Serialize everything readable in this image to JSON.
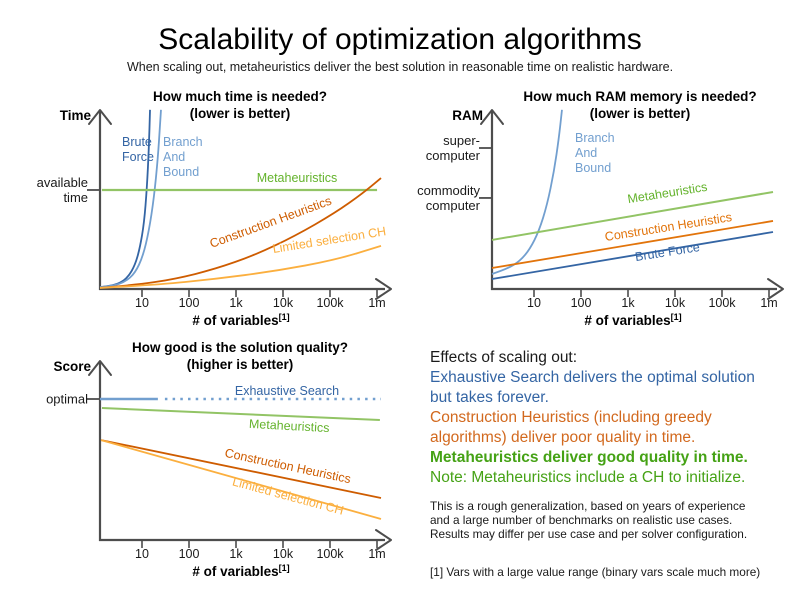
{
  "page": {
    "title": "Scalability of optimization algorithms",
    "subtitle": "When scaling out, metaheuristics deliver the best solution in reasonable time on realistic hardware."
  },
  "chart_data": [
    {
      "id": "time",
      "type": "line",
      "title_lines": [
        "How much time is needed?",
        "(lower is better)"
      ],
      "y_axis_label": "Time",
      "x_axis_label": "# of variables",
      "x_axis_footnote_marker": "[1]",
      "x_scale": "log",
      "x_tick_labels": [
        "10",
        "100",
        "1k",
        "10k",
        "100k",
        "1m"
      ],
      "y_ticks": [
        {
          "lines": [
            "available",
            "time"
          ],
          "fy": 0.547
        }
      ],
      "legend_position": "inline-labels",
      "grid": false,
      "series": [
        {
          "name": "Brute Force",
          "color": "#3465A4",
          "width": 1.8,
          "segments": [
            {
              "points": [
                [
                  0,
                  0.01
                ],
                [
                  0.036,
                  0.017
                ],
                [
                  0.071,
                  0.033
                ],
                [
                  0.1,
                  0.066
                ],
                [
                  0.125,
                  0.133
                ],
                [
                  0.142,
                  0.227
                ],
                [
                  0.157,
                  0.365
                ],
                [
                  0.167,
                  0.56
                ],
                [
                  0.174,
                  0.78
                ],
                [
                  0.178,
                  0.99
                ]
              ]
            }
          ],
          "label": {
            "lines": [
              "Brute",
              "Force"
            ],
            "x": 97,
            "y": 61,
            "anchor": "start"
          }
        },
        {
          "name": "Branch And Bound",
          "color": "#729FCF",
          "width": 1.8,
          "segments": [
            {
              "points": [
                [
                  0,
                  0.01
                ],
                [
                  0.046,
                  0.017
                ],
                [
                  0.089,
                  0.039
                ],
                [
                  0.125,
                  0.088
                ],
                [
                  0.153,
                  0.182
                ],
                [
                  0.174,
                  0.32
                ],
                [
                  0.192,
                  0.503
                ],
                [
                  0.206,
                  0.724
                ],
                [
                  0.214,
                  0.917
                ],
                [
                  0.217,
                  0.99
                ]
              ]
            }
          ],
          "label": {
            "lines": [
              "Branch",
              "And",
              "Bound"
            ],
            "x": 138,
            "y": 61,
            "anchor": "start"
          }
        },
        {
          "name": "Metaheuristics",
          "color": "#92C465",
          "width": 2.2,
          "segments": [
            {
              "points": [
                [
                  0.007,
                  0.547
                ],
                [
                  0.986,
                  0.547
                ]
              ]
            }
          ],
          "label": {
            "lines": [
              "Metaheuristics"
            ],
            "x": 272,
            "y": 97,
            "anchor": "middle",
            "color": "#64B32C"
          }
        },
        {
          "name": "Construction Heuristics",
          "color": "#CE5C00",
          "width": 1.8,
          "segments": [
            {
              "points": [
                [
                  0,
                  0.006
                ],
                [
                  0.125,
                  0.022
                ],
                [
                  0.267,
                  0.055
                ],
                [
                  0.409,
                  0.11
                ],
                [
                  0.552,
                  0.188
                ],
                [
                  0.694,
                  0.293
                ],
                [
                  0.836,
                  0.42
                ],
                [
                  0.936,
                  0.53
                ],
                [
                  1,
                  0.613
                ]
              ]
            }
          ],
          "label": {
            "lines": [
              "Construction Heuristics"
            ],
            "x": 247,
            "y": 141,
            "anchor": "middle",
            "rotate": -20
          }
        },
        {
          "name": "Limited selection CH",
          "color": "#FBAF3F",
          "width": 1.8,
          "segments": [
            {
              "points": [
                [
                  0,
                  0.006
                ],
                [
                  0.196,
                  0.022
                ],
                [
                  0.409,
                  0.055
                ],
                [
                  0.623,
                  0.099
                ],
                [
                  0.836,
                  0.16
                ],
                [
                  1,
                  0.238
                ]
              ]
            }
          ],
          "label": {
            "lines": [
              "Limited selection CH"
            ],
            "x": 305,
            "y": 159,
            "anchor": "middle",
            "rotate": -9
          }
        }
      ]
    },
    {
      "id": "ram",
      "type": "line",
      "title_lines": [
        "How much RAM memory is needed?",
        "(lower is better)"
      ],
      "y_axis_label": "RAM",
      "x_axis_label": "# of variables",
      "x_axis_footnote_marker": "[1]",
      "x_scale": "log",
      "x_tick_labels": [
        "10",
        "100",
        "1k",
        "10k",
        "100k",
        "1m"
      ],
      "y_ticks": [
        {
          "lines": [
            "super-",
            "computer"
          ],
          "fy": 0.779
        },
        {
          "lines": [
            "commodity",
            "computer"
          ],
          "fy": 0.503
        }
      ],
      "legend_position": "inline-labels",
      "grid": false,
      "series": [
        {
          "name": "Branch And Bound",
          "color": "#729FCF",
          "width": 1.8,
          "segments": [
            {
              "points": [
                [
                  0,
                  0.083
                ],
                [
                  0.053,
                  0.11
                ],
                [
                  0.1,
                  0.155
                ],
                [
                  0.135,
                  0.221
                ],
                [
                  0.167,
                  0.32
                ],
                [
                  0.196,
                  0.464
                ],
                [
                  0.221,
                  0.652
                ],
                [
                  0.238,
                  0.834
                ],
                [
                  0.249,
                  0.99
                ]
              ]
            }
          ],
          "label": {
            "lines": [
              "Branch",
              "And",
              "Bound"
            ],
            "x": 158,
            "y": 57,
            "anchor": "start"
          }
        },
        {
          "name": "Metaheuristics",
          "color": "#92C465",
          "width": 2,
          "segments": [
            {
              "points": [
                [
                  0,
                  0.271
                ],
                [
                  1,
                  0.536
                ]
              ]
            }
          ],
          "label": {
            "lines": [
              "Metaheuristics"
            ],
            "x": 251,
            "y": 112,
            "anchor": "middle",
            "rotate": -9,
            "color": "#64B32C"
          }
        },
        {
          "name": "Construction Heuristics",
          "color": "#E2740B",
          "width": 1.8,
          "segments": [
            {
              "points": [
                [
                  0,
                  0.116
                ],
                [
                  1,
                  0.376
                ]
              ]
            }
          ],
          "label": {
            "lines": [
              "Construction Heuristics"
            ],
            "x": 252,
            "y": 146,
            "anchor": "middle",
            "rotate": -9
          }
        },
        {
          "name": "Brute Force",
          "color": "#3465A4",
          "width": 1.8,
          "segments": [
            {
              "points": [
                [
                  0,
                  0.055
                ],
                [
                  1,
                  0.315
                ]
              ]
            }
          ],
          "label": {
            "lines": [
              "Brute Force"
            ],
            "x": 251,
            "y": 171,
            "anchor": "middle",
            "rotate": -9
          }
        }
      ]
    },
    {
      "id": "score",
      "type": "line",
      "title_lines": [
        "How good is the solution quality?",
        "(higher is better)"
      ],
      "y_axis_label": "Score",
      "x_axis_label": "# of variables",
      "x_axis_footnote_marker": "[1]",
      "x_scale": "log",
      "x_tick_labels": [
        "10",
        "100",
        "1k",
        "10k",
        "100k",
        "1m"
      ],
      "y_ticks": [
        {
          "lines": [
            "optimal"
          ],
          "fy": 0.779
        }
      ],
      "legend_position": "inline-labels",
      "grid": false,
      "series": [
        {
          "name": "Exhaustive Search",
          "color": "#729FCF",
          "width": 2.4,
          "segments": [
            {
              "points": [
                [
                  0,
                  0.779
                ],
                [
                  0.206,
                  0.779
                ]
              ]
            },
            {
              "points": [
                [
                  0.231,
                  0.779
                ],
                [
                  1,
                  0.779
                ]
              ],
              "dash": "2.5 5.2"
            }
          ],
          "label": {
            "lines": [
              "Exhaustive Search"
            ],
            "x": 262,
            "y": 59,
            "anchor": "middle",
            "color": "#3465A4"
          }
        },
        {
          "name": "Metaheuristics",
          "color": "#92C465",
          "width": 2,
          "segments": [
            {
              "points": [
                [
                  0.007,
                  0.729
                ],
                [
                  0.996,
                  0.663
                ]
              ]
            }
          ],
          "label": {
            "lines": [
              "Metaheuristics"
            ],
            "x": 264,
            "y": 94,
            "anchor": "middle",
            "rotate": 3,
            "color": "#64B32C"
          }
        },
        {
          "name": "Construction Heuristics",
          "color": "#CE5C00",
          "width": 1.8,
          "segments": [
            {
              "points": [
                [
                  0.004,
                  0.552
                ],
                [
                  1,
                  0.232
                ]
              ]
            }
          ],
          "label": {
            "lines": [
              "Construction Heuristics"
            ],
            "x": 262,
            "y": 134,
            "anchor": "middle",
            "rotate": 12
          }
        },
        {
          "name": "Limited selection CH",
          "color": "#FBAF3F",
          "width": 1.8,
          "segments": [
            {
              "points": [
                [
                  0.004,
                  0.552
                ],
                [
                  1,
                  0.116
                ]
              ]
            }
          ],
          "label": {
            "lines": [
              "Limited selection CH"
            ],
            "x": 262,
            "y": 164,
            "anchor": "middle",
            "rotate": 15
          }
        }
      ]
    }
  ],
  "effects_panel": {
    "lines": [
      {
        "text": "Effects of scaling out:",
        "color": "#1a1a1a",
        "bold": false
      },
      {
        "text": "Exhaustive Search delivers the optimal solution",
        "color": "#3465A4",
        "bold": false
      },
      {
        "text": "but takes forever.",
        "color": "#3465A4",
        "bold": false
      },
      {
        "text": "Construction Heuristics (including greedy",
        "color": "#D2691E",
        "bold": false
      },
      {
        "text": "algorithms) deliver poor quality in time.",
        "color": "#D2691E",
        "bold": false
      },
      {
        "text": "Metaheuristics deliver good quality in time.",
        "color": "#45A215",
        "bold": true
      },
      {
        "text": "Note: Metaheuristics include a CH to initialize.",
        "color": "#45A215",
        "bold": false
      }
    ],
    "disclaimer_lines": [
      "This is a rough generalization, based on years of experience",
      "and a large number of benchmarks on realistic use cases.",
      "Results may differ per use case and per solver configuration."
    ],
    "footnote": "[1] Vars with a large value range (binary vars scale much more)"
  }
}
